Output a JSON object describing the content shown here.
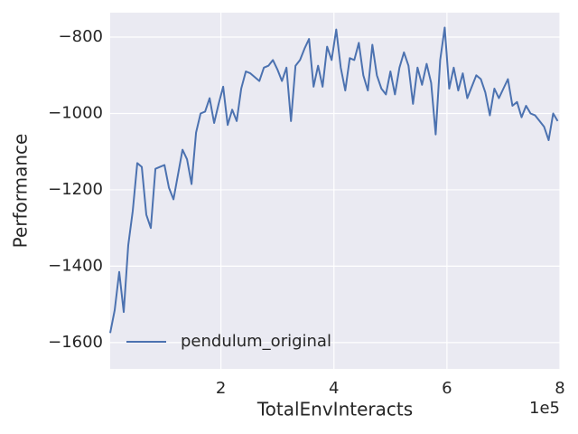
{
  "chart_data": {
    "type": "line",
    "x_label": "TotalEnvInteracts",
    "y_label": "Performance",
    "x_offset_label": "1e5",
    "x": [
      0.04,
      0.12,
      0.2,
      0.28,
      0.36,
      0.44,
      0.52,
      0.6,
      0.68,
      0.76,
      0.84,
      0.92,
      1.0,
      1.08,
      1.16,
      1.24,
      1.32,
      1.4,
      1.48,
      1.56,
      1.64,
      1.72,
      1.8,
      1.88,
      1.96,
      2.04,
      2.12,
      2.2,
      2.28,
      2.36,
      2.44,
      2.52,
      2.6,
      2.68,
      2.76,
      2.84,
      2.92,
      3.0,
      3.08,
      3.16,
      3.24,
      3.32,
      3.4,
      3.48,
      3.56,
      3.64,
      3.72,
      3.8,
      3.88,
      3.96,
      4.04,
      4.12,
      4.2,
      4.28,
      4.36,
      4.44,
      4.52,
      4.6,
      4.68,
      4.76,
      4.84,
      4.92,
      5.0,
      5.08,
      5.16,
      5.24,
      5.32,
      5.4,
      5.48,
      5.56,
      5.64,
      5.72,
      5.8,
      5.88,
      5.96,
      6.04,
      6.12,
      6.2,
      6.28,
      6.36,
      6.44,
      6.52,
      6.6,
      6.68,
      6.76,
      6.84,
      6.92,
      7.0,
      7.08,
      7.16,
      7.24,
      7.32,
      7.4,
      7.48,
      7.56,
      7.64,
      7.72,
      7.8,
      7.88,
      7.96
    ],
    "series": [
      {
        "name": "pendulum_original",
        "color": "#4c72b0",
        "values": [
          -1575,
          -1515,
          -1415,
          -1520,
          -1345,
          -1255,
          -1130,
          -1140,
          -1265,
          -1300,
          -1145,
          -1140,
          -1135,
          -1195,
          -1225,
          -1160,
          -1095,
          -1120,
          -1185,
          -1050,
          -1000,
          -995,
          -960,
          -1025,
          -975,
          -930,
          -1030,
          -990,
          -1020,
          -935,
          -890,
          -895,
          -905,
          -915,
          -880,
          -875,
          -860,
          -885,
          -915,
          -880,
          -1020,
          -875,
          -860,
          -830,
          -805,
          -930,
          -875,
          -930,
          -825,
          -860,
          -780,
          -880,
          -940,
          -855,
          -860,
          -815,
          -900,
          -940,
          -820,
          -900,
          -935,
          -950,
          -890,
          -950,
          -880,
          -840,
          -875,
          -975,
          -880,
          -925,
          -870,
          -920,
          -1055,
          -860,
          -775,
          -935,
          -880,
          -940,
          -895,
          -960,
          -930,
          -900,
          -910,
          -945,
          -1005,
          -935,
          -960,
          -935,
          -910,
          -980,
          -970,
          -1010,
          -980,
          -1000,
          -1005,
          -1020,
          -1035,
          -1070,
          -1000,
          -1020
        ]
      }
    ],
    "xlim": [
      0.04,
      8
    ],
    "xticks": [
      2,
      4,
      6,
      8
    ],
    "ylim": [
      -1669,
      -736
    ],
    "yticks": [
      {
        "value": -1600,
        "label": "−1600"
      },
      {
        "value": -1400,
        "label": "−1400"
      },
      {
        "value": -1200,
        "label": "−1200"
      },
      {
        "value": -1000,
        "label": "−1000"
      },
      {
        "value": -800,
        "label": "−800"
      }
    ],
    "grid": true,
    "legend": "lower left"
  }
}
